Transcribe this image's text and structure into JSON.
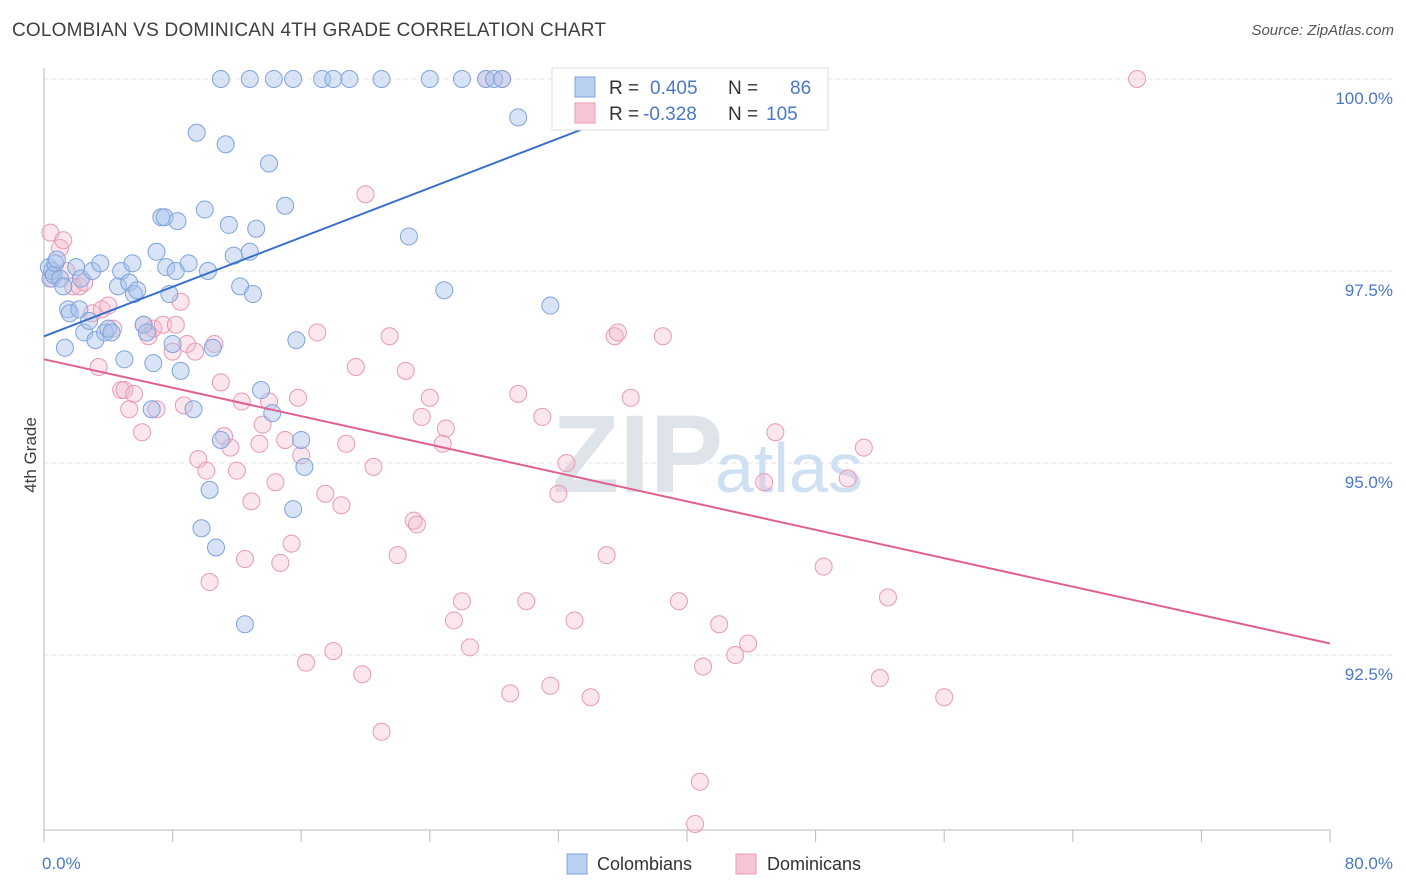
{
  "title": "COLOMBIAN VS DOMINICAN 4TH GRADE CORRELATION CHART",
  "source": "Source: ZipAtlas.com",
  "watermark": {
    "zip": "ZIP",
    "atlas": "atlas"
  },
  "colors": {
    "blue": "#4a78c8",
    "blue_fill": "#a9c4eb",
    "pink": "#e06090",
    "pink_fill": "#f3b6cb",
    "grid": "#dddddd"
  },
  "chart_data": {
    "type": "scatter",
    "ylabel": "4th Grade",
    "xlim": [
      0,
      80
    ],
    "ylim": [
      89.8,
      100.3
    ],
    "x_tick_labels": [
      "0.0%",
      "80.0%"
    ],
    "y_ticks": [
      {
        "value": 100.0,
        "label": "100.0%"
      },
      {
        "value": 97.5,
        "label": "97.5%"
      },
      {
        "value": 95.0,
        "label": "95.0%"
      },
      {
        "value": 92.5,
        "label": "92.5%"
      }
    ],
    "grid": true,
    "legend_top": [
      {
        "r_label": "R =",
        "r_value": "0.405",
        "n_label": "N =",
        "n_value": "86"
      },
      {
        "r_label": "R =",
        "r_value": "-0.328",
        "n_label": "N =",
        "n_value": "105"
      }
    ],
    "series": [
      {
        "name": "Colombians",
        "trend": {
          "x": [
            0,
            41
          ],
          "y": [
            96.65,
            99.95
          ]
        },
        "points": [
          [
            0.3,
            97.55
          ],
          [
            0.4,
            97.4
          ],
          [
            0.5,
            97.5
          ],
          [
            0.6,
            97.45
          ],
          [
            0.7,
            97.6
          ],
          [
            0.8,
            97.65
          ],
          [
            1.0,
            97.4
          ],
          [
            1.2,
            97.3
          ],
          [
            1.3,
            96.5
          ],
          [
            1.5,
            97.0
          ],
          [
            1.6,
            96.95
          ],
          [
            2.0,
            97.55
          ],
          [
            2.2,
            97.0
          ],
          [
            2.3,
            97.4
          ],
          [
            2.5,
            96.7
          ],
          [
            2.8,
            96.85
          ],
          [
            3.0,
            97.5
          ],
          [
            3.2,
            96.6
          ],
          [
            3.5,
            97.6
          ],
          [
            3.8,
            96.7
          ],
          [
            4.0,
            96.75
          ],
          [
            4.2,
            96.7
          ],
          [
            4.6,
            97.3
          ],
          [
            4.8,
            97.5
          ],
          [
            5.0,
            96.35
          ],
          [
            5.3,
            97.35
          ],
          [
            5.5,
            97.6
          ],
          [
            5.6,
            97.2
          ],
          [
            5.8,
            97.25
          ],
          [
            6.2,
            96.8
          ],
          [
            6.4,
            96.7
          ],
          [
            6.7,
            95.7
          ],
          [
            6.8,
            96.3
          ],
          [
            7.0,
            97.75
          ],
          [
            7.3,
            98.2
          ],
          [
            7.5,
            98.2
          ],
          [
            7.6,
            97.55
          ],
          [
            7.8,
            97.2
          ],
          [
            8.0,
            96.55
          ],
          [
            8.2,
            97.5
          ],
          [
            8.3,
            98.15
          ],
          [
            8.5,
            96.2
          ],
          [
            9.0,
            97.6
          ],
          [
            9.3,
            95.7
          ],
          [
            9.5,
            99.3
          ],
          [
            9.8,
            94.15
          ],
          [
            10.0,
            98.3
          ],
          [
            10.2,
            97.5
          ],
          [
            10.3,
            94.65
          ],
          [
            10.5,
            96.5
          ],
          [
            10.7,
            93.9
          ],
          [
            11.0,
            95.3
          ],
          [
            11.3,
            99.15
          ],
          [
            11.5,
            98.1
          ],
          [
            11.8,
            97.7
          ],
          [
            12.2,
            97.3
          ],
          [
            12.5,
            92.9
          ],
          [
            12.8,
            97.75
          ],
          [
            13.0,
            97.2
          ],
          [
            13.2,
            98.05
          ],
          [
            13.5,
            95.95
          ],
          [
            14.0,
            98.9
          ],
          [
            14.2,
            95.65
          ],
          [
            15.0,
            98.35
          ],
          [
            15.5,
            94.4
          ],
          [
            15.7,
            96.6
          ],
          [
            16.0,
            95.3
          ],
          [
            16.2,
            94.95
          ],
          [
            11.0,
            100.0
          ],
          [
            12.8,
            100.0
          ],
          [
            14.3,
            100.0
          ],
          [
            15.5,
            100.0
          ],
          [
            17.3,
            100.0
          ],
          [
            18.0,
            100.0
          ],
          [
            19.0,
            100.0
          ],
          [
            21.0,
            100.0
          ],
          [
            24.0,
            100.0
          ],
          [
            26.0,
            100.0
          ],
          [
            27.5,
            100.0
          ],
          [
            28.0,
            100.0
          ],
          [
            28.5,
            100.0
          ],
          [
            22.7,
            97.95
          ],
          [
            24.9,
            97.25
          ],
          [
            29.5,
            99.5
          ],
          [
            31.5,
            97.05
          ],
          [
            32.5,
            100.0
          ]
        ]
      },
      {
        "name": "Dominicans",
        "trend": {
          "x": [
            0,
            80
          ],
          "y": [
            96.35,
            92.65
          ]
        },
        "points": [
          [
            0.4,
            98.0
          ],
          [
            0.5,
            97.4
          ],
          [
            1.0,
            97.8
          ],
          [
            1.2,
            97.9
          ],
          [
            1.4,
            97.5
          ],
          [
            1.8,
            97.3
          ],
          [
            2.2,
            97.3
          ],
          [
            2.5,
            97.35
          ],
          [
            3.0,
            96.95
          ],
          [
            3.4,
            96.25
          ],
          [
            3.6,
            97.0
          ],
          [
            4.0,
            97.05
          ],
          [
            4.3,
            96.75
          ],
          [
            4.8,
            95.95
          ],
          [
            5.0,
            95.95
          ],
          [
            5.3,
            95.7
          ],
          [
            5.6,
            95.9
          ],
          [
            6.1,
            95.4
          ],
          [
            6.2,
            96.8
          ],
          [
            6.5,
            96.65
          ],
          [
            6.8,
            96.75
          ],
          [
            7.0,
            95.7
          ],
          [
            7.4,
            96.8
          ],
          [
            8.0,
            96.45
          ],
          [
            8.2,
            96.8
          ],
          [
            8.5,
            97.1
          ],
          [
            8.7,
            95.75
          ],
          [
            8.9,
            96.55
          ],
          [
            9.4,
            96.45
          ],
          [
            9.6,
            95.05
          ],
          [
            10.1,
            94.9
          ],
          [
            10.3,
            93.45
          ],
          [
            10.6,
            96.55
          ],
          [
            11.0,
            96.05
          ],
          [
            11.2,
            95.35
          ],
          [
            11.6,
            95.2
          ],
          [
            12.0,
            94.9
          ],
          [
            12.3,
            95.8
          ],
          [
            12.5,
            93.75
          ],
          [
            12.9,
            94.5
          ],
          [
            13.4,
            95.25
          ],
          [
            13.6,
            95.5
          ],
          [
            14.0,
            95.8
          ],
          [
            14.4,
            94.75
          ],
          [
            14.7,
            93.7
          ],
          [
            15.0,
            95.3
          ],
          [
            15.4,
            93.95
          ],
          [
            15.8,
            95.85
          ],
          [
            16.0,
            95.1
          ],
          [
            16.3,
            92.4
          ],
          [
            17.0,
            96.7
          ],
          [
            17.5,
            94.6
          ],
          [
            18.0,
            92.55
          ],
          [
            18.5,
            94.45
          ],
          [
            18.8,
            95.25
          ],
          [
            19.4,
            96.25
          ],
          [
            19.8,
            92.25
          ],
          [
            20.0,
            98.5
          ],
          [
            20.5,
            94.95
          ],
          [
            21.0,
            91.5
          ],
          [
            21.5,
            96.65
          ],
          [
            22.0,
            93.8
          ],
          [
            22.5,
            96.2
          ],
          [
            23.0,
            94.25
          ],
          [
            23.2,
            94.2
          ],
          [
            23.5,
            95.6
          ],
          [
            24.0,
            95.85
          ],
          [
            24.8,
            95.25
          ],
          [
            25.0,
            95.45
          ],
          [
            25.5,
            92.95
          ],
          [
            26.0,
            93.2
          ],
          [
            26.5,
            92.6
          ],
          [
            27.5,
            100.0
          ],
          [
            28.5,
            100.0
          ],
          [
            29.0,
            92.0
          ],
          [
            29.5,
            95.9
          ],
          [
            30.0,
            93.2
          ],
          [
            31.0,
            95.6
          ],
          [
            31.5,
            92.1
          ],
          [
            32.0,
            94.6
          ],
          [
            32.5,
            95.0
          ],
          [
            33.0,
            92.95
          ],
          [
            34.0,
            91.95
          ],
          [
            35.0,
            93.8
          ],
          [
            35.5,
            96.65
          ],
          [
            35.7,
            96.7
          ],
          [
            36.5,
            95.85
          ],
          [
            38.5,
            96.65
          ],
          [
            39.5,
            93.2
          ],
          [
            40.5,
            90.3
          ],
          [
            40.8,
            90.85
          ],
          [
            41.0,
            92.35
          ],
          [
            42.0,
            92.9
          ],
          [
            43.0,
            92.5
          ],
          [
            43.8,
            92.65
          ],
          [
            44.8,
            94.75
          ],
          [
            44.5,
            100.0
          ],
          [
            45.5,
            95.4
          ],
          [
            48.5,
            93.65
          ],
          [
            50.0,
            94.8
          ],
          [
            51.0,
            95.2
          ],
          [
            52.0,
            92.2
          ],
          [
            52.5,
            93.25
          ],
          [
            56.0,
            91.95
          ],
          [
            68.0,
            100.0
          ]
        ]
      }
    ]
  }
}
